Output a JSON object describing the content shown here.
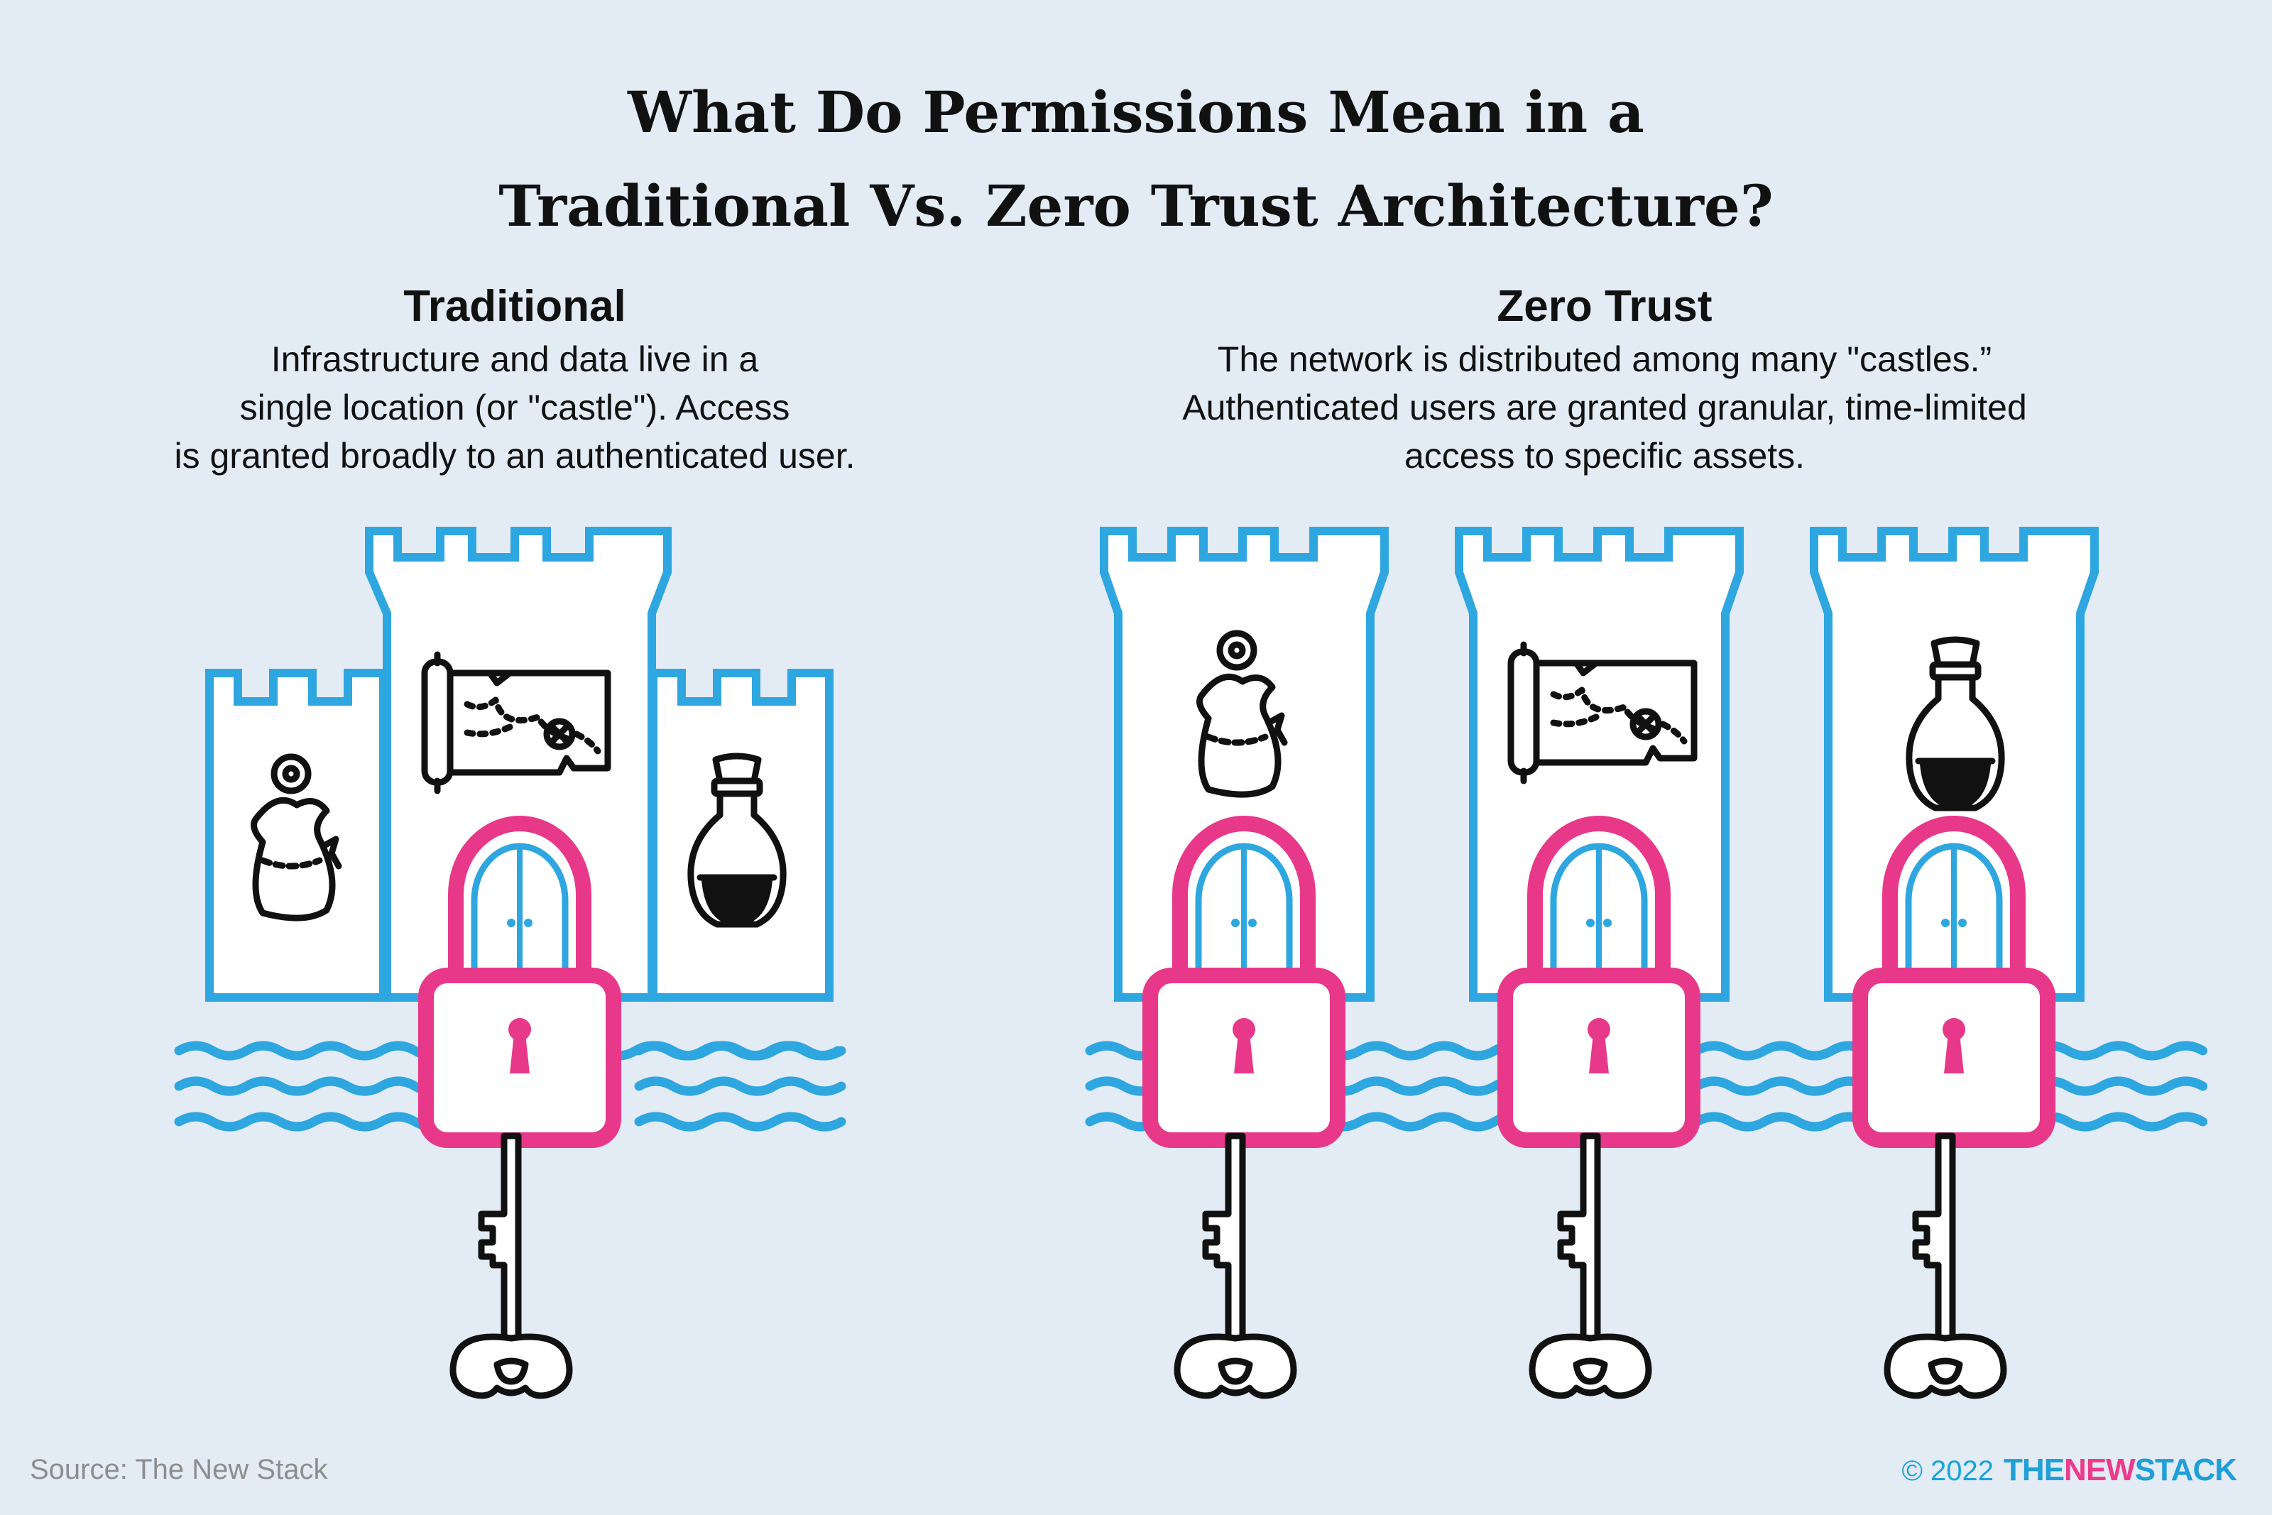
{
  "title": {
    "line1": "What Do Permissions Mean in a",
    "line2": "Traditional Vs. Zero Trust Architecture?"
  },
  "traditional": {
    "heading": "Traditional",
    "desc1": "Infrastructure and data live in a",
    "desc2": "single location (or \"castle\"). Access",
    "desc3": "is granted broadly to an authenticated user."
  },
  "zero_trust": {
    "heading": "Zero Trust",
    "desc1": "The network is distributed among many \"castles.”",
    "desc2": "Authenticated users are granted granular, time-limited",
    "desc3": "access to specific assets."
  },
  "footer": {
    "source": "Source: The New Stack",
    "copyright": "© 2022",
    "logo_part1": "THE",
    "logo_part2": "NEW",
    "logo_part3": "STACK"
  },
  "colors": {
    "background": "#e3ebf4",
    "castle_stroke": "#2ea6e0",
    "lock": "#e8388a",
    "ink": "#111111"
  },
  "icons": [
    "castle-icon",
    "coin-bag-icon",
    "treasure-map-icon",
    "potion-bottle-icon",
    "padlock-icon",
    "key-icon",
    "water-waves-icon"
  ]
}
